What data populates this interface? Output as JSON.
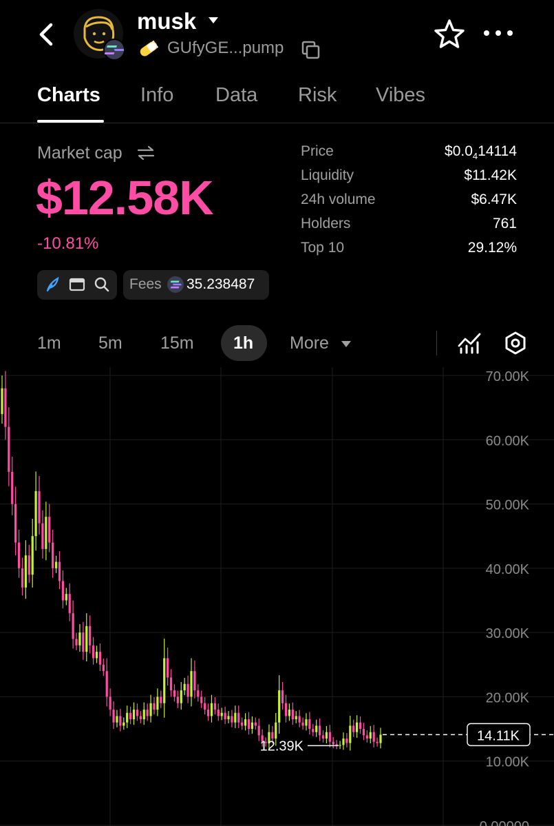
{
  "header": {
    "token_name": "musk",
    "address": "GUfyGE...pump"
  },
  "tabs": [
    "Charts",
    "Info",
    "Data",
    "Risk",
    "Vibes"
  ],
  "market": {
    "cap_label": "Market cap",
    "cap_value": "$12.58K",
    "change": "-10.81%"
  },
  "stats": [
    {
      "label": "Price",
      "value_main": "$0.0",
      "value_sub": "4",
      "value_rest": "14114"
    },
    {
      "label": "Liquidity",
      "value": "$11.42K"
    },
    {
      "label": "24h volume",
      "value": "$6.47K"
    },
    {
      "label": "Holders",
      "value": "761"
    },
    {
      "label": "Top 10",
      "value": "29.12%"
    }
  ],
  "fees": {
    "label": "Fees",
    "value": "35.238487"
  },
  "timeframes": [
    "1m",
    "5m",
    "15m",
    "1h",
    "More"
  ],
  "active_timeframe": "1h",
  "colors": {
    "up": "#c6f135",
    "down": "#ff4da6",
    "accent": "#ff4da6"
  },
  "chart_data": {
    "type": "candlestick",
    "y_ticks": [
      "70.00K",
      "60.00K",
      "50.00K",
      "40.00K",
      "30.00K",
      "20.00K",
      "10.00K",
      "0.00000"
    ],
    "ylim": [
      0,
      70000
    ],
    "current_price_label": "14.11K",
    "current_price": 14110,
    "low_marker_label": "12.39K",
    "low_marker": 12390,
    "close_series": [
      68000,
      62000,
      55000,
      50000,
      44000,
      40000,
      37000,
      42000,
      39000,
      45000,
      52000,
      47000,
      43000,
      48000,
      44000,
      40000,
      41000,
      38000,
      35000,
      36000,
      33000,
      29000,
      28000,
      30000,
      27000,
      31000,
      28000,
      26000,
      27000,
      25000,
      24000,
      20000,
      18000,
      16000,
      17000,
      15500,
      16000,
      17500,
      16500,
      18000,
      17000,
      16500,
      18000,
      17000,
      19000,
      18000,
      20000,
      19000,
      26000,
      23000,
      21000,
      20000,
      19000,
      21000,
      22000,
      20000,
      24000,
      21000,
      20000,
      19000,
      18000,
      17000,
      19000,
      18000,
      17000,
      17500,
      16500,
      17000,
      16000,
      17500,
      16000,
      15500,
      16500,
      15000,
      16000,
      15500,
      14000,
      13000,
      12800,
      14500,
      13500,
      16000,
      21000,
      19000,
      17000,
      18000,
      16500,
      17000,
      16000,
      15500,
      16500,
      15000,
      14500,
      15500,
      14000,
      13500,
      14500,
      13000,
      12600,
      12400,
      12500,
      13500,
      12800,
      15500,
      14500,
      16000,
      15000,
      14000,
      13500,
      14500,
      13000,
      12800,
      14110
    ]
  }
}
